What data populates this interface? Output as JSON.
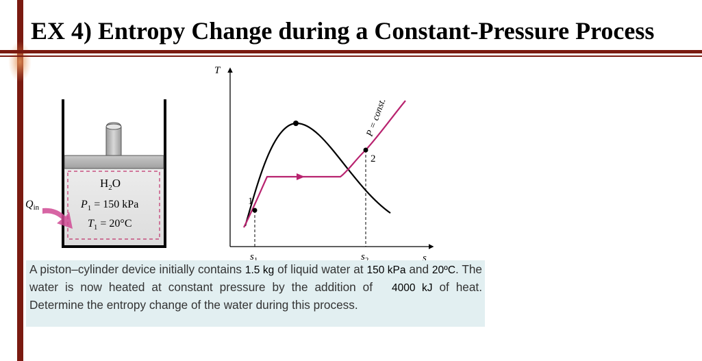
{
  "slide": {
    "title": "EX 4) Entropy Change during a Constant-Pressure Process"
  },
  "figure": {
    "cylinder": {
      "substance": "H",
      "substance_sub": "2",
      "substance_tail": "O",
      "pressure_label": "P",
      "pressure_sub": "1",
      "pressure_value": " = 150 kPa",
      "temperature_label": "T",
      "temperature_sub": "1",
      "temperature_value": " = 20°C",
      "heat_label": "Q",
      "heat_sub": "in"
    },
    "ts_diagram": {
      "y_axis_label": "T",
      "x_axis_label": "s",
      "tick_s1": "s",
      "tick_s1_sub": "1",
      "tick_s2": "s",
      "tick_s2_sub": "2",
      "state1_label": "1",
      "state2_label": "2",
      "isobar_label": "P = const.",
      "colors": {
        "isobar": "#b8236f",
        "dome": "#000000"
      }
    }
  },
  "problem": {
    "part1": "A piston–cylinder device initially contains ",
    "mass": "1.5 kg",
    "part2": "of liquid water at ",
    "pressure": "150 kPa",
    "part3": " and ",
    "temperature": "20ºC",
    "part4": ". The water is now heated at constant pressure by the addition of ",
    "heat": "4000 kJ",
    "part5": " of heat. Determine the entropy change of the water during this process."
  }
}
